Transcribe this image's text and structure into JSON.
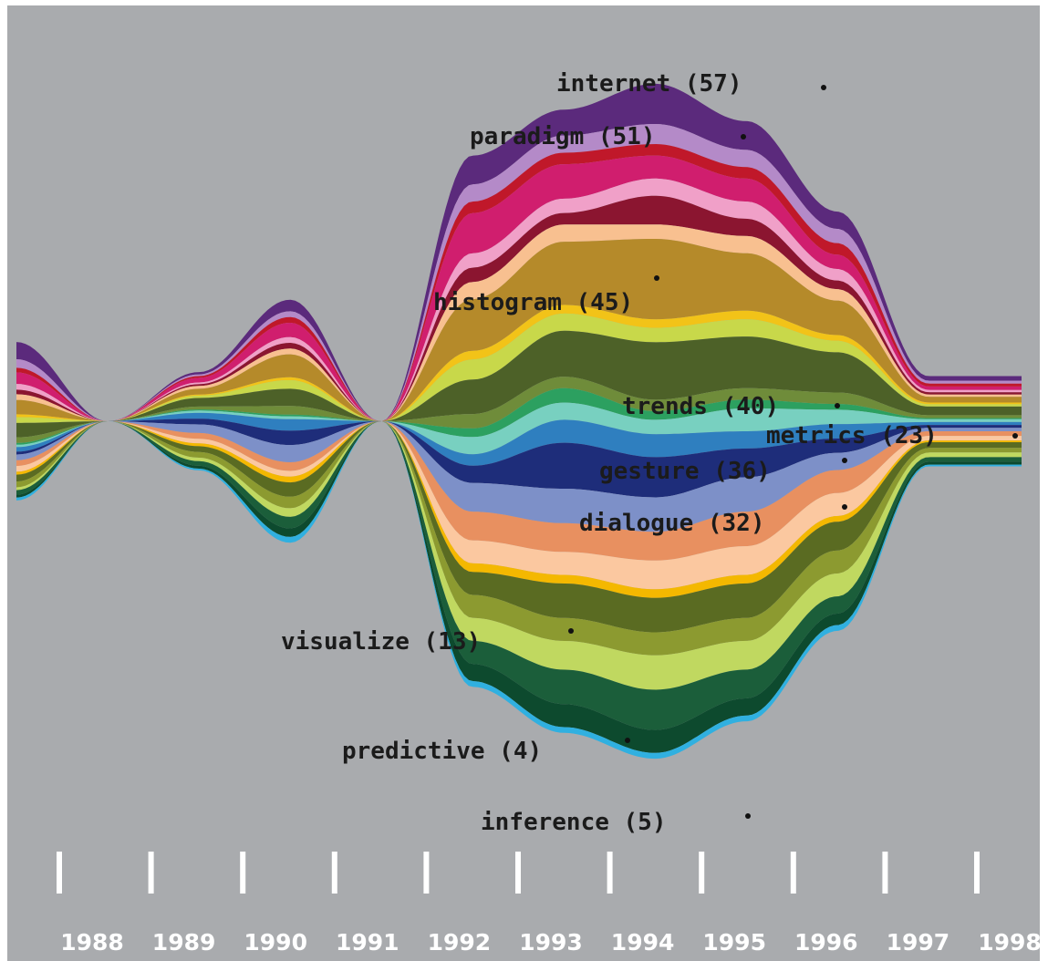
{
  "chart_data": {
    "type": "area",
    "style": "streamgraph",
    "title": "",
    "xlabel": "",
    "ylabel": "",
    "background": "#a9abae",
    "x": [
      "1988",
      "1989",
      "1990",
      "1991",
      "1992",
      "1993",
      "1994",
      "1995",
      "1996",
      "1997",
      "1998"
    ],
    "annotations": [
      {
        "term": "internet",
        "count": 57,
        "text": "internet (57)",
        "year": 1995.3
      },
      {
        "term": "paradigm",
        "count": 51,
        "text": "paradigm (51)",
        "year": 1994.5
      },
      {
        "term": "histogram",
        "count": 45,
        "text": "histogram (45)",
        "year": 1993.5
      },
      {
        "term": "trends",
        "count": 40,
        "text": "trends (40)",
        "year": 1994.5
      },
      {
        "term": "metrics",
        "count": 23,
        "text": "metrics (23)",
        "year": 1996.3
      },
      {
        "term": "gesture",
        "count": 36,
        "text": "gesture (36)",
        "year": 1994.6
      },
      {
        "term": "dialogue",
        "count": 32,
        "text": "dialogue (32)",
        "year": 1994.6
      },
      {
        "term": "visualize",
        "count": 13,
        "text": "visualize (13)",
        "year": 1991.6
      },
      {
        "term": "predictive",
        "count": 4,
        "text": "predictive (4)",
        "year": 1992.7
      },
      {
        "term": "inference",
        "count": 5,
        "text": "inference (5)",
        "year": 1993.6
      }
    ],
    "series": [
      {
        "color": "#5b2a7c",
        "values": [
          3,
          0,
          0.4,
          2,
          0,
          5,
          4.5,
          7,
          5,
          3,
          0.8
        ]
      },
      {
        "color": "#b48ac8",
        "values": [
          1.5,
          0,
          0.3,
          1,
          0,
          3,
          3,
          3.5,
          3,
          2.5,
          0.5
        ]
      },
      {
        "color": "#c0182a",
        "values": [
          0.8,
          0,
          0.3,
          1,
          0,
          2,
          2,
          2,
          2,
          2,
          0.5
        ]
      },
      {
        "color": "#d01e6e",
        "values": [
          2,
          0,
          0.8,
          2.5,
          0,
          7,
          6,
          4,
          4,
          2.5,
          0.6
        ]
      },
      {
        "color": "#f0a0c8",
        "values": [
          1,
          0,
          0.3,
          1,
          0,
          2.5,
          2.5,
          3,
          3,
          2,
          0.4
        ]
      },
      {
        "color": "#8b1530",
        "values": [
          0.8,
          0,
          0.3,
          1,
          0,
          2.5,
          2,
          5,
          3,
          1.5,
          0.4
        ]
      },
      {
        "color": "#f8c090",
        "values": [
          1,
          0,
          0.5,
          1,
          0,
          3,
          3,
          2.5,
          3,
          2,
          0.4
        ]
      },
      {
        "color": "#b58a2a",
        "values": [
          2.5,
          0,
          1,
          4,
          0,
          9,
          11,
          14,
          10,
          6,
          1
        ]
      },
      {
        "color": "#f2c318",
        "values": [
          0.5,
          0,
          0.2,
          0.5,
          0,
          1.5,
          1.5,
          1.5,
          1.5,
          1,
          0.3
        ]
      },
      {
        "color": "#c8d84a",
        "values": [
          1,
          0,
          0.4,
          1.5,
          0,
          3.5,
          3,
          2.5,
          3,
          2,
          0.4
        ]
      },
      {
        "color": "#4d6128",
        "values": [
          2.5,
          0,
          1.5,
          3,
          0,
          6,
          8,
          10,
          9,
          7,
          1.5
        ]
      },
      {
        "color": "#6f8c3a",
        "values": [
          1,
          0,
          0.5,
          1.5,
          0,
          2.5,
          2,
          2,
          2,
          2,
          0.5
        ]
      },
      {
        "color": "#2ca060",
        "values": [
          0.3,
          0,
          0.2,
          0.3,
          0,
          1.5,
          2.5,
          1.5,
          1.5,
          1,
          0.2
        ]
      },
      {
        "color": "#78d0c0",
        "values": [
          0.4,
          0,
          0.4,
          0.5,
          0,
          3,
          3,
          2.5,
          4,
          2.5,
          0.5
        ]
      },
      {
        "color": "#2f7fbf",
        "values": [
          0.8,
          0,
          1,
          2,
          0,
          2,
          4,
          4,
          3,
          2.5,
          0.5
        ]
      },
      {
        "color": "#1e2d7a",
        "values": [
          0.5,
          0,
          1,
          2.5,
          0,
          3,
          8,
          7,
          5,
          2.5,
          0.5
        ]
      },
      {
        "color": "#7d90c8",
        "values": [
          1,
          0,
          1.5,
          3,
          0,
          5,
          6,
          6,
          6,
          3,
          0.6
        ]
      },
      {
        "color": "#e89060",
        "values": [
          1,
          0,
          1,
          1.5,
          0,
          5,
          5,
          5,
          6,
          4,
          0.8
        ]
      },
      {
        "color": "#fbc8a0",
        "values": [
          1,
          0,
          0.8,
          1,
          0,
          4,
          4,
          5,
          5,
          4,
          0.8
        ]
      },
      {
        "color": "#f4b800",
        "values": [
          0.5,
          0,
          0.5,
          1,
          0,
          1.5,
          1.5,
          1.5,
          1.5,
          1,
          0.3
        ]
      },
      {
        "color": "#5a6b22",
        "values": [
          1.2,
          0,
          1,
          2.5,
          0,
          4,
          6,
          6,
          6,
          5,
          1
        ]
      },
      {
        "color": "#8c9a30",
        "values": [
          1,
          0,
          1,
          2,
          0,
          4,
          4,
          4,
          4,
          4,
          0.8
        ]
      },
      {
        "color": "#c0d860",
        "values": [
          0.5,
          0,
          0.6,
          1.5,
          0,
          4,
          5,
          6,
          5,
          4,
          0.8
        ]
      },
      {
        "color": "#1b5e3a",
        "values": [
          0.8,
          0,
          0.8,
          2,
          0,
          4,
          6,
          7,
          5,
          3,
          0.8
        ]
      },
      {
        "color": "#0d4a2e",
        "values": [
          0.5,
          0,
          0.5,
          1.5,
          0,
          3,
          4,
          4,
          3,
          2,
          0.5
        ]
      },
      {
        "color": "#30b0e0",
        "values": [
          0.5,
          0,
          0.3,
          1,
          0,
          1,
          1,
          1,
          1,
          1,
          0.3
        ]
      }
    ],
    "grid": false,
    "legend": "none"
  }
}
